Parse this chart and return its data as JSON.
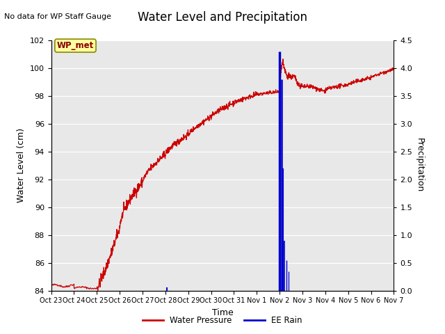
{
  "title": "Water Level and Precipitation",
  "top_left_text": "No data for WP Staff Gauge",
  "box_label": "WP_met",
  "ylabel_left": "Water Level (cm)",
  "ylabel_right": "Precipitation",
  "xlabel": "Time",
  "ylim_left": [
    84,
    102
  ],
  "ylim_right": [
    0.0,
    4.5
  ],
  "yticks_left": [
    84,
    86,
    88,
    90,
    92,
    94,
    96,
    98,
    100,
    102
  ],
  "yticks_right": [
    0.0,
    0.5,
    1.0,
    1.5,
    2.0,
    2.5,
    3.0,
    3.5,
    4.0,
    4.5
  ],
  "xtick_labels": [
    "Oct 23",
    "Oct 24",
    "Oct 25",
    "Oct 26",
    "Oct 27",
    "Oct 28",
    "Oct 29",
    "Oct 30",
    "Oct 31",
    "Nov 1",
    "Nov 2",
    "Nov 3",
    "Nov 4",
    "Nov 5",
    "Nov 6",
    "Nov 7"
  ],
  "plot_bg_color": "#e8e8e8",
  "water_pressure_color": "#cc0000",
  "rain_color": "#0000cc",
  "legend_labels": [
    "Water Pressure",
    "EE Rain"
  ],
  "title_fontsize": 12,
  "axis_label_fontsize": 9,
  "tick_fontsize": 8
}
